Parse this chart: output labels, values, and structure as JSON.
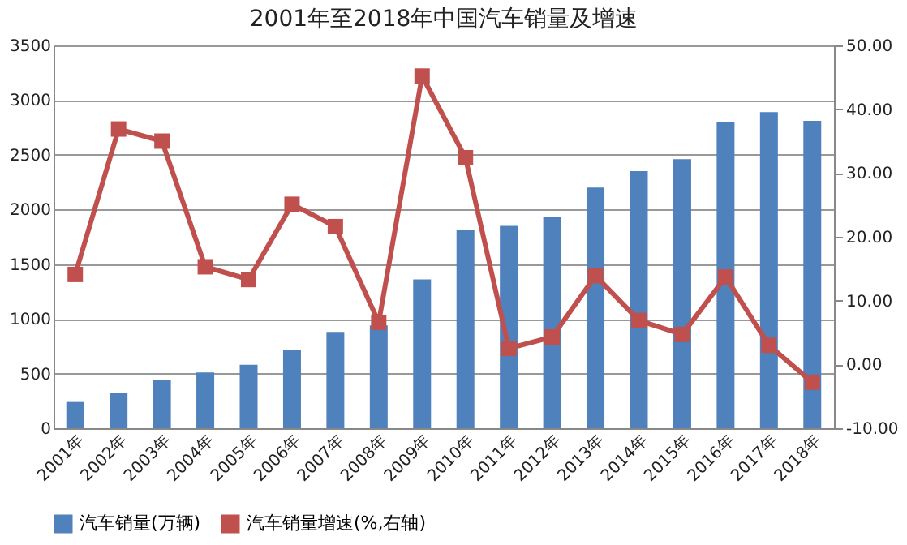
{
  "chart_data": {
    "type": "bar",
    "title": "2001年至2018年中国汽车销量及增速",
    "categories": [
      "2001年",
      "2002年",
      "2003年",
      "2004年",
      "2005年",
      "2006年",
      "2007年",
      "2008年",
      "2009年",
      "2010年",
      "2011年",
      "2012年",
      "2013年",
      "2014年",
      "2015年",
      "2016年",
      "2017年",
      "2018年"
    ],
    "series": [
      {
        "name": "汽车销量(万辆)",
        "color": "#4f81bd",
        "values": [
          240,
          320,
          440,
          510,
          580,
          720,
          880,
          940,
          1360,
          1810,
          1850,
          1930,
          2200,
          2350,
          2460,
          2800,
          2890,
          2810
        ]
      },
      {
        "name": "汽车销量增速(%,右轴)",
        "color": "#c0504d",
        "type": "line",
        "axis": "y2",
        "marker": "square",
        "values": [
          14.1,
          36.9,
          35.0,
          15.3,
          13.3,
          25.1,
          21.6,
          6.6,
          45.2,
          32.4,
          2.5,
          4.3,
          13.9,
          6.9,
          4.7,
          13.7,
          3.0,
          -2.8
        ]
      }
    ],
    "ylim": [
      0,
      3500
    ],
    "yticks": [
      0,
      500,
      1000,
      1500,
      2000,
      2500,
      3000,
      3500
    ],
    "y2lim": [
      -10,
      50
    ],
    "y2ticks": [
      {
        "value": -10,
        "label": "-10.00"
      },
      {
        "value": 0,
        "label": "0.00"
      },
      {
        "value": 10,
        "label": "10.00"
      },
      {
        "value": 20,
        "label": "20.00"
      },
      {
        "value": 30,
        "label": "30.00"
      },
      {
        "value": 40,
        "label": "40.00"
      },
      {
        "value": 50,
        "label": "50.00"
      }
    ],
    "grid": "y",
    "legend": "bottom"
  }
}
